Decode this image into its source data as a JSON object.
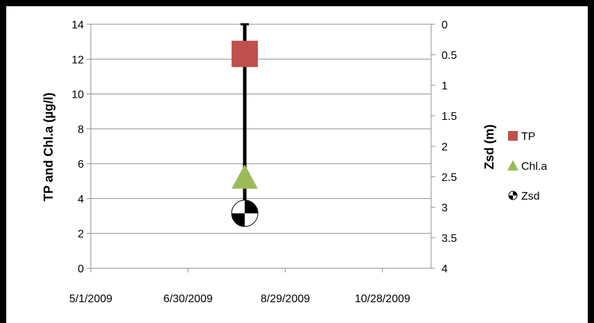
{
  "chart_data": {
    "type": "scatter",
    "title": "",
    "ylabel_left": "TP and Chl.a (µg/l)",
    "ylabel_right": "Zsd (m)",
    "x_ticks": [
      "5/1/2009",
      "6/30/2009",
      "8/29/2009",
      "10/28/2009"
    ],
    "xlim": [
      "5/1/2009",
      "11/27/2009"
    ],
    "y_left_ticks": [
      "0",
      "2",
      "4",
      "6",
      "8",
      "10",
      "12",
      "14"
    ],
    "ylim_left": [
      0,
      14
    ],
    "y_right_ticks": [
      "0",
      "0.5",
      "1",
      "1.5",
      "2",
      "2.5",
      "3",
      "3.5",
      "4"
    ],
    "ylim_right": [
      4,
      0
    ],
    "grid": true,
    "legend_position": "right",
    "series": [
      {
        "name": "TP",
        "axis": "left",
        "marker": "square",
        "color": "#c0504d",
        "points": [
          {
            "x": "8/4/2009",
            "y": 12.3
          }
        ]
      },
      {
        "name": "Chl.a",
        "axis": "left",
        "marker": "triangle",
        "color": "#9bbb59",
        "points": [
          {
            "x": "8/4/2009",
            "y": 5.2
          }
        ]
      },
      {
        "name": "Zsd",
        "axis": "right",
        "marker": "checker-circle",
        "color": "#000000",
        "points": [
          {
            "x": "8/4/2009",
            "y": 3.1
          }
        ],
        "error_bar": {
          "from": 0,
          "to": 3.1
        }
      }
    ]
  }
}
